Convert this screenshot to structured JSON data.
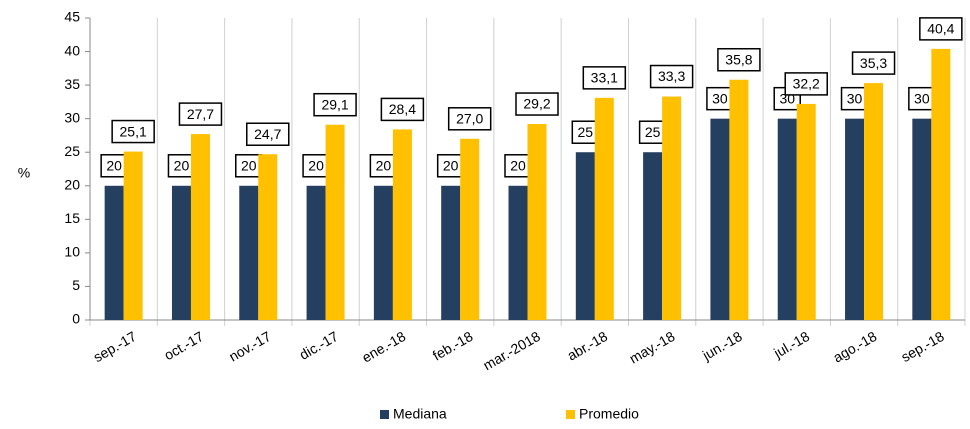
{
  "chart_data": {
    "type": "bar",
    "y_label": "%",
    "categories": [
      "sep.-17",
      "oct.-17",
      "nov.-17",
      "dic.-17",
      "ene.-18",
      "feb.-18",
      "mar.-2018",
      "abr.-18",
      "may.-18",
      "jun.-18",
      "jul.-18",
      "ago.-18",
      "sep.-18"
    ],
    "series": [
      {
        "name": "Mediana",
        "color": "#243f60",
        "values": [
          20,
          20,
          20,
          20,
          20,
          20,
          20,
          25,
          25,
          30,
          30,
          30,
          30
        ]
      },
      {
        "name": "Promedio",
        "color": "#ffc000",
        "values": [
          25.1,
          27.7,
          24.7,
          29.1,
          28.4,
          27.0,
          29.2,
          33.1,
          33.3,
          35.8,
          32.2,
          35.3,
          40.4
        ],
        "value_labels": [
          "25,1",
          "27,7",
          "24,7",
          "29,1",
          "28,4",
          "27,0",
          "29,2",
          "33,1",
          "33,3",
          "35,8",
          "32,2",
          "35,3",
          "40,4"
        ]
      }
    ],
    "ylim": [
      0,
      45
    ],
    "yticks": [
      0,
      5,
      10,
      15,
      20,
      25,
      30,
      35,
      40,
      45
    ],
    "legend": "bottom"
  }
}
